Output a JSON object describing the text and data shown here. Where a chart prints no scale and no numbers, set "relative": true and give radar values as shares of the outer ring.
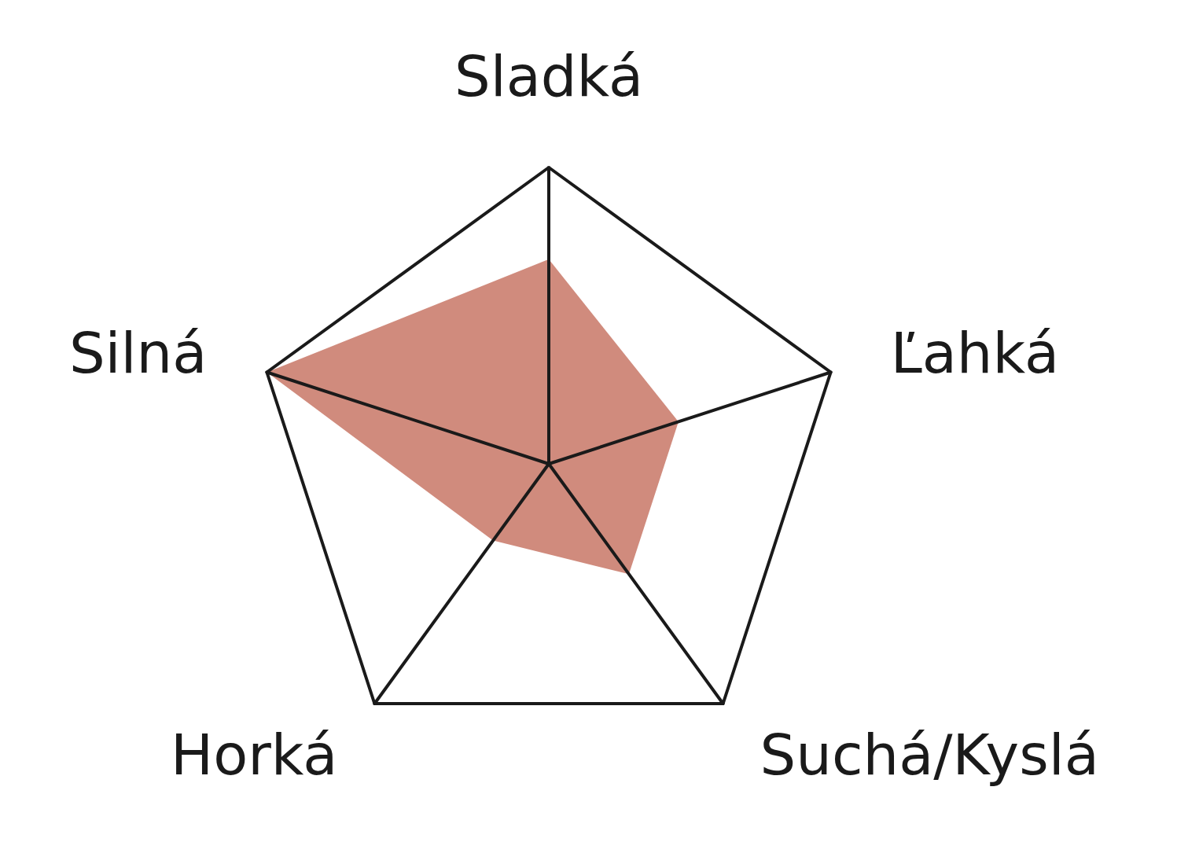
{
  "chart_data": {
    "type": "radar",
    "relative": true,
    "categories": [
      "Sladká",
      "Ľahká",
      "Suchá/Kyslá",
      "Horká",
      "Silná"
    ],
    "series": [
      {
        "color": "#d08b7d",
        "values": [
          0.69,
          0.46,
          0.46,
          0.32,
          1
        ]
      }
    ]
  }
}
